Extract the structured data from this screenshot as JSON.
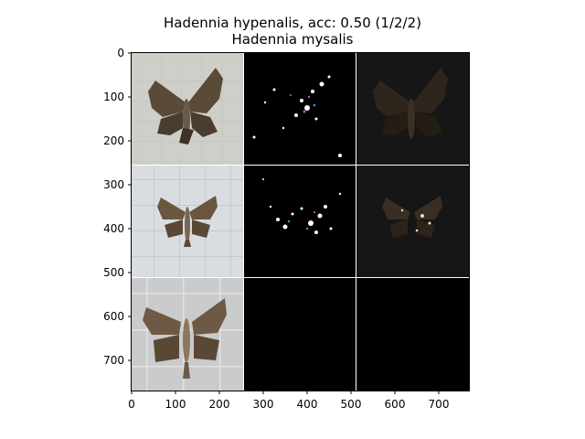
{
  "title": {
    "line1": "Hadennia hypenalis, acc: 0.50 (1/2/2)",
    "line2": "Hadennia mysalis"
  },
  "axes": {
    "x_ticks": [
      "0",
      "100",
      "200",
      "300",
      "400",
      "500",
      "600",
      "700"
    ],
    "y_ticks": [
      "0",
      "100",
      "200",
      "300",
      "400",
      "500",
      "600",
      "700"
    ]
  },
  "panels": [
    {
      "row": 0,
      "col": 0,
      "content": "moth-photo"
    },
    {
      "row": 0,
      "col": 1,
      "content": "saliency-sparse"
    },
    {
      "row": 0,
      "col": 2,
      "content": "masked-photo"
    },
    {
      "row": 1,
      "col": 0,
      "content": "moth-photo"
    },
    {
      "row": 1,
      "col": 1,
      "content": "saliency-sparse"
    },
    {
      "row": 1,
      "col": 2,
      "content": "masked-photo"
    },
    {
      "row": 2,
      "col": 0,
      "content": "moth-photo"
    },
    {
      "row": 2,
      "col": 1,
      "content": "empty-black"
    },
    {
      "row": 2,
      "col": 2,
      "content": "empty-black"
    }
  ],
  "colors": {
    "photo_bg_1": "#cfcfca",
    "photo_bg_2": "#d9dde2",
    "photo_bg_3": "#c9cbcc",
    "moth_brown": "#5a4a38",
    "moth_light": "#8a7760",
    "black": "#000000",
    "dark_bg": "#161616"
  }
}
